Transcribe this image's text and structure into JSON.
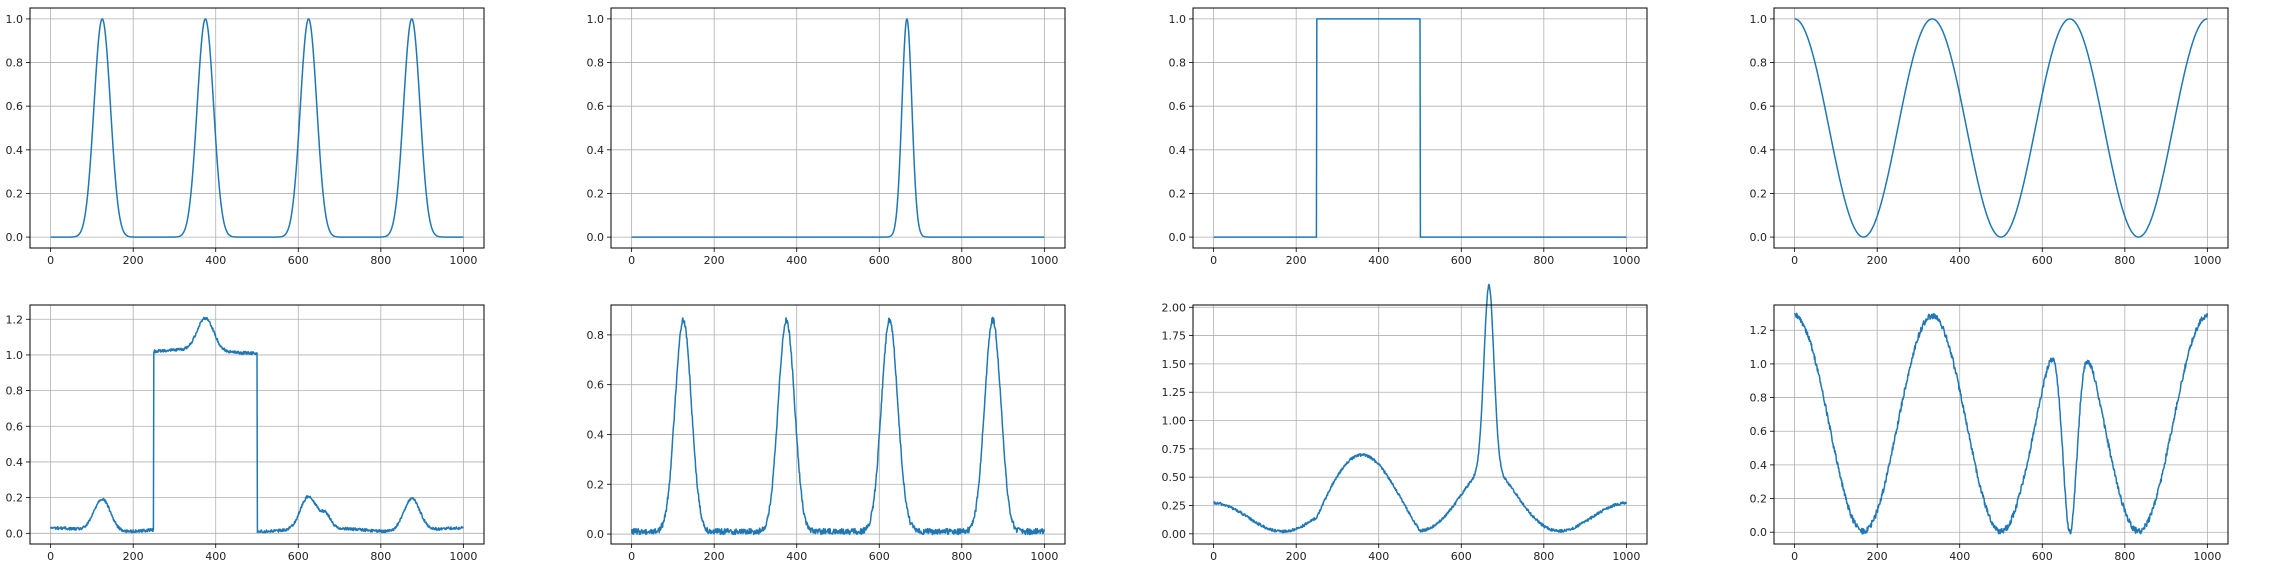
{
  "figure": {
    "background": "#ffffff",
    "line_color": "#1f77b4",
    "grid_color": "#b0b0b0"
  },
  "chart_data": [
    {
      "type": "line",
      "title": "",
      "xlabel": "",
      "ylabel": "",
      "xlim": [
        -50,
        1050
      ],
      "ylim": [
        -0.05,
        1.05
      ],
      "grid": true,
      "xticks": [
        0,
        200,
        400,
        600,
        800,
        1000
      ],
      "yticks": [
        0.0,
        0.2,
        0.4,
        0.6,
        0.8,
        1.0
      ],
      "ytick_decimals": 1,
      "series": [
        {
          "n": 1000,
          "components": [
            {
              "kind": "raised_gauss",
              "amp": 1.0,
              "period": 250,
              "peak": 125,
              "power": 8
            }
          ],
          "noise": 0
        }
      ]
    },
    {
      "type": "line",
      "title": "",
      "xlabel": "",
      "ylabel": "",
      "xlim": [
        -50,
        1050
      ],
      "ylim": [
        -0.05,
        1.05
      ],
      "grid": true,
      "xticks": [
        0,
        200,
        400,
        600,
        800,
        1000
      ],
      "yticks": [
        0.0,
        0.2,
        0.4,
        0.6,
        0.8,
        1.0
      ],
      "ytick_decimals": 1,
      "series": [
        {
          "n": 1000,
          "components": [
            {
              "kind": "gauss",
              "amp": 1.0,
              "center": 667,
              "sigma": 12
            }
          ],
          "noise": 0
        }
      ]
    },
    {
      "type": "line",
      "title": "",
      "xlabel": "",
      "ylabel": "",
      "xlim": [
        -50,
        1050
      ],
      "ylim": [
        -0.05,
        1.05
      ],
      "grid": true,
      "xticks": [
        0,
        200,
        400,
        600,
        800,
        1000
      ],
      "yticks": [
        0.0,
        0.2,
        0.4,
        0.6,
        0.8,
        1.0
      ],
      "ytick_decimals": 1,
      "series": [
        {
          "n": 1000,
          "components": [
            {
              "kind": "rect",
              "amp": 1.0,
              "start": 250,
              "end": 500
            }
          ],
          "noise": 0
        }
      ]
    },
    {
      "type": "line",
      "title": "",
      "xlabel": "",
      "ylabel": "",
      "xlim": [
        -50,
        1050
      ],
      "ylim": [
        -0.05,
        1.05
      ],
      "grid": true,
      "xticks": [
        0,
        200,
        400,
        600,
        800,
        1000
      ],
      "yticks": [
        0.0,
        0.2,
        0.4,
        0.6,
        0.8,
        1.0
      ],
      "ytick_decimals": 1,
      "series": [
        {
          "n": 1000,
          "components": [
            {
              "kind": "cosine",
              "amp": 1.0,
              "period": 333.3
            }
          ],
          "noise": 0
        }
      ]
    },
    {
      "type": "line",
      "title": "",
      "xlabel": "",
      "ylabel": "",
      "xlim": [
        -50,
        1050
      ],
      "ylim": [
        -0.06,
        1.28
      ],
      "grid": true,
      "xticks": [
        0,
        200,
        400,
        600,
        800,
        1000
      ],
      "yticks": [
        0.0,
        0.2,
        0.4,
        0.6,
        0.8,
        1.0,
        1.2
      ],
      "ytick_decimals": 1,
      "series": [
        {
          "n": 1000,
          "components": [
            {
              "kind": "raised_gauss",
              "amp": 0.18,
              "period": 250,
              "peak": 125,
              "power": 8
            },
            {
              "kind": "gauss",
              "amp": 0.07,
              "center": 667,
              "sigma": 12
            },
            {
              "kind": "rect",
              "amp": 1.0,
              "start": 250,
              "end": 500
            },
            {
              "kind": "cosine",
              "amp": 0.02,
              "period": 333.3
            },
            {
              "kind": "const",
              "amp": 0.01
            }
          ],
          "noise": 0.008
        }
      ]
    },
    {
      "type": "line",
      "title": "",
      "xlabel": "",
      "ylabel": "",
      "xlim": [
        -50,
        1050
      ],
      "ylim": [
        -0.04,
        0.92
      ],
      "grid": true,
      "xticks": [
        0,
        200,
        400,
        600,
        800,
        1000
      ],
      "yticks": [
        0.0,
        0.2,
        0.4,
        0.6,
        0.8
      ],
      "ytick_decimals": 1,
      "series": [
        {
          "n": 1000,
          "components": [
            {
              "kind": "raised_gauss",
              "amp": 0.85,
              "period": 250,
              "peak": 125,
              "power": 8
            },
            {
              "kind": "gauss",
              "amp": 0.015,
              "center": 667,
              "sigma": 12
            },
            {
              "kind": "const",
              "amp": 0.01
            }
          ],
          "noise": 0.012
        }
      ]
    },
    {
      "type": "line",
      "title": "",
      "xlabel": "",
      "ylabel": "",
      "xlim": [
        -50,
        1050
      ],
      "ylim": [
        -0.09,
        2.02
      ],
      "grid": true,
      "xticks": [
        0,
        200,
        400,
        600,
        800,
        1000
      ],
      "yticks": [
        0.0,
        0.25,
        0.5,
        0.75,
        1.0,
        1.25,
        1.5,
        1.75,
        2.0
      ],
      "ytick_decimals": 2,
      "series": [
        {
          "n": 1000,
          "components": [
            {
              "kind": "gauss",
              "amp": 1.62,
              "center": 667,
              "sigma": 12
            },
            {
              "kind": "gauss",
              "amp": 0.3,
              "center": 667,
              "sigma": 60
            },
            {
              "kind": "cosine",
              "amp": 0.25,
              "period": 333.3
            },
            {
              "kind": "rect",
              "amp": 0.45,
              "start": 250,
              "end": 500,
              "shape": "hump"
            },
            {
              "kind": "const",
              "amp": 0.02
            }
          ],
          "noise": 0.012
        }
      ]
    },
    {
      "type": "line",
      "title": "",
      "xlabel": "",
      "ylabel": "",
      "xlim": [
        -50,
        1050
      ],
      "ylim": [
        -0.07,
        1.35
      ],
      "grid": true,
      "xticks": [
        0,
        200,
        400,
        600,
        800,
        1000
      ],
      "yticks": [
        0.0,
        0.2,
        0.4,
        0.6,
        0.8,
        1.0,
        1.2
      ],
      "ytick_decimals": 1,
      "series": [
        {
          "n": 1000,
          "components": [
            {
              "kind": "cosine",
              "amp": 1.28,
              "period": 333.3
            },
            {
              "kind": "notch",
              "amp": 1.0,
              "center": 667,
              "sigma": 18
            },
            {
              "kind": "const",
              "amp": 0.005
            }
          ],
          "noise": 0.018
        }
      ]
    }
  ]
}
